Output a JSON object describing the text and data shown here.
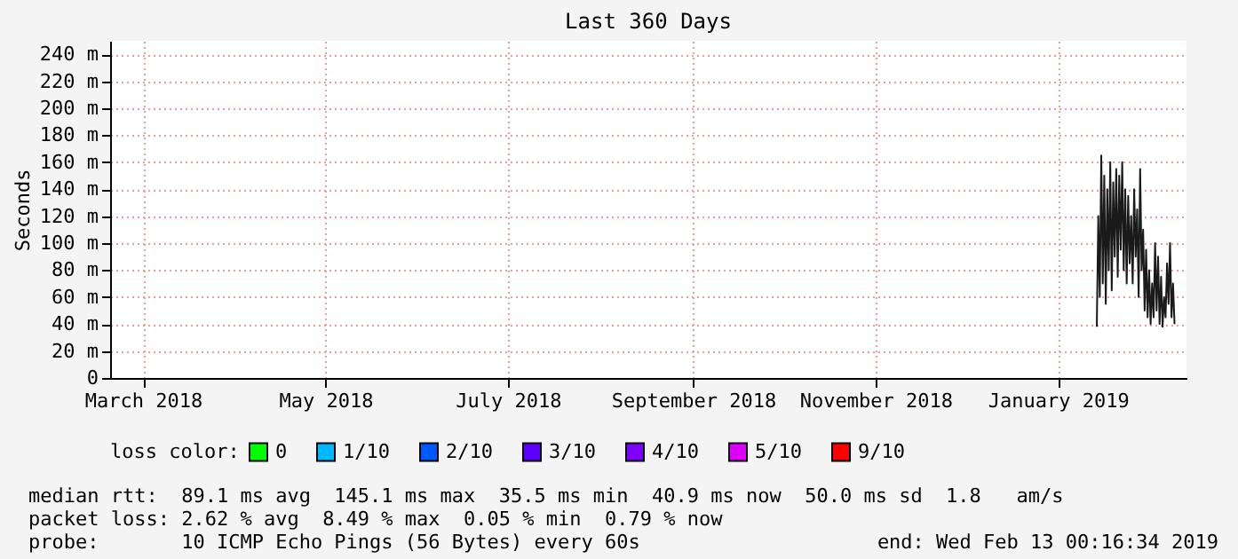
{
  "chart_data": {
    "type": "line",
    "title": "Last 360 Days",
    "ylabel": "Seconds",
    "legend_title": "loss color:",
    "legend": "bottom",
    "grid": true,
    "marker": "none",
    "line_style": "solid",
    "xlim": [
      "2018-02-18",
      "2019-02-13"
    ],
    "xticks": [
      {
        "value": "2018-03-01",
        "label": "March 2018"
      },
      {
        "value": "2018-05-01",
        "label": "May 2018"
      },
      {
        "value": "2018-07-01",
        "label": "July 2018"
      },
      {
        "value": "2018-09-01",
        "label": "September 2018"
      },
      {
        "value": "2018-11-01",
        "label": "November 2018"
      },
      {
        "value": "2019-01-01",
        "label": "January 2019"
      }
    ],
    "ylim": [
      0,
      250
    ],
    "yticks": [
      0,
      {
        "value": 20,
        "label": "20 m"
      },
      {
        "value": 40,
        "label": "40 m"
      },
      {
        "value": 60,
        "label": "60 m"
      },
      {
        "value": 80,
        "label": "80 m"
      },
      {
        "value": 100,
        "label": "100 m"
      },
      {
        "value": 120,
        "label": "120 m"
      },
      {
        "value": 140,
        "label": "140 m"
      },
      {
        "value": 160,
        "label": "160 m"
      },
      {
        "value": 180,
        "label": "180 m"
      },
      {
        "value": 200,
        "label": "200 m"
      },
      {
        "value": 220,
        "label": "220 m"
      },
      {
        "value": 240,
        "label": "240 m"
      }
    ],
    "x": [
      "2019-01-14T00:00",
      "2019-01-14T12:00",
      "2019-01-15T00:00",
      "2019-01-15T12:00",
      "2019-01-16T00:00",
      "2019-01-16T12:00",
      "2019-01-17T00:00",
      "2019-01-17T12:00",
      "2019-01-18T00:00",
      "2019-01-18T12:00",
      "2019-01-19T00:00",
      "2019-01-19T12:00",
      "2019-01-20T00:00",
      "2019-01-20T12:00",
      "2019-01-21T00:00",
      "2019-01-21T12:00",
      "2019-01-22T00:00",
      "2019-01-22T12:00",
      "2019-01-23T00:00",
      "2019-01-23T12:00",
      "2019-01-24T00:00",
      "2019-01-24T12:00",
      "2019-01-25T00:00",
      "2019-01-25T12:00",
      "2019-01-26T00:00",
      "2019-01-26T12:00",
      "2019-01-27T00:00",
      "2019-01-27T12:00",
      "2019-01-28T00:00",
      "2019-01-28T12:00",
      "2019-01-29T00:00",
      "2019-01-29T12:00",
      "2019-01-30T00:00",
      "2019-01-30T12:00",
      "2019-01-31T00:00",
      "2019-01-31T12:00",
      "2019-02-01T00:00",
      "2019-02-01T12:00",
      "2019-02-02T00:00",
      "2019-02-02T12:00",
      "2019-02-03T00:00",
      "2019-02-03T12:00",
      "2019-02-04T00:00",
      "2019-02-04T12:00",
      "2019-02-05T00:00",
      "2019-02-05T12:00",
      "2019-02-06T00:00",
      "2019-02-06T12:00",
      "2019-02-07T00:00",
      "2019-02-07T12:00",
      "2019-02-08T00:00",
      "2019-02-08T12:00",
      "2019-02-09T00:00"
    ],
    "series": [
      {
        "color": "#1a1a1a",
        "values": [
          38,
          120,
          60,
          165,
          70,
          150,
          55,
          140,
          80,
          160,
          65,
          145,
          90,
          155,
          75,
          150,
          95,
          160,
          80,
          140,
          70,
          135,
          85,
          120,
          70,
          140,
          90,
          125,
          60,
          155,
          80,
          110,
          50,
          95,
          45,
          80,
          40,
          70,
          45,
          100,
          50,
          90,
          40,
          75,
          38,
          60,
          45,
          85,
          55,
          100,
          45,
          70,
          40
        ]
      },
      {
        "name": "0",
        "color": "#00ff00",
        "values": [
          null,
          null,
          null,
          null,
          null,
          null,
          null,
          null,
          null,
          null,
          null,
          null,
          null,
          null,
          null,
          null,
          null,
          null,
          null,
          null,
          null,
          null,
          null,
          null,
          null,
          null,
          null,
          null,
          null,
          null,
          null,
          null,
          null,
          null,
          null,
          null,
          null,
          null,
          null,
          null,
          null,
          null,
          null,
          null,
          null,
          null,
          null,
          null,
          null,
          null,
          null,
          null,
          null
        ]
      },
      {
        "name": "1/10",
        "color": "#00b8ff",
        "values": [
          null,
          null,
          null,
          null,
          null,
          null,
          null,
          null,
          null,
          null,
          null,
          null,
          null,
          null,
          null,
          null,
          null,
          null,
          null,
          null,
          null,
          null,
          null,
          null,
          null,
          null,
          null,
          null,
          null,
          null,
          null,
          null,
          null,
          null,
          null,
          null,
          null,
          null,
          null,
          null,
          null,
          null,
          null,
          null,
          null,
          null,
          null,
          null,
          null,
          null,
          null,
          null,
          null
        ]
      },
      {
        "name": "2/10",
        "color": "#0059ff",
        "values": [
          null,
          null,
          null,
          null,
          null,
          null,
          null,
          null,
          null,
          null,
          null,
          null,
          null,
          null,
          null,
          null,
          null,
          null,
          null,
          null,
          null,
          null,
          null,
          null,
          null,
          null,
          null,
          null,
          null,
          null,
          null,
          null,
          null,
          null,
          null,
          null,
          null,
          null,
          null,
          null,
          null,
          null,
          null,
          null,
          null,
          null,
          null,
          null,
          null,
          null,
          null,
          null,
          null
        ]
      },
      {
        "name": "3/10",
        "color": "#5e00ff",
        "values": [
          null,
          null,
          null,
          null,
          null,
          null,
          null,
          null,
          null,
          null,
          null,
          null,
          null,
          null,
          null,
          null,
          null,
          null,
          null,
          null,
          null,
          null,
          null,
          null,
          null,
          null,
          null,
          null,
          null,
          null,
          null,
          null,
          null,
          null,
          null,
          null,
          null,
          null,
          null,
          null,
          null,
          null,
          null,
          null,
          null,
          null,
          null,
          null,
          null,
          null,
          null,
          null,
          null
        ]
      },
      {
        "name": "4/10",
        "color": "#7e00ff",
        "values": [
          null,
          null,
          null,
          null,
          null,
          null,
          null,
          null,
          null,
          null,
          null,
          null,
          null,
          null,
          null,
          null,
          null,
          null,
          null,
          null,
          null,
          null,
          null,
          null,
          null,
          null,
          null,
          null,
          null,
          null,
          null,
          null,
          null,
          null,
          null,
          null,
          null,
          null,
          null,
          null,
          null,
          null,
          null,
          null,
          null,
          null,
          null,
          null,
          null,
          null,
          null,
          null,
          null
        ]
      },
      {
        "name": "5/10",
        "color": "#dd00ff",
        "values": [
          null,
          null,
          null,
          null,
          null,
          null,
          null,
          null,
          null,
          null,
          null,
          null,
          null,
          null,
          null,
          null,
          null,
          null,
          null,
          null,
          null,
          null,
          null,
          null,
          null,
          null,
          null,
          null,
          null,
          null,
          null,
          null,
          null,
          null,
          null,
          null,
          null,
          null,
          null,
          null,
          null,
          null,
          null,
          null,
          null,
          null,
          null,
          null,
          null,
          null,
          null,
          null,
          null
        ]
      },
      {
        "name": "9/10",
        "color": "#ff0000",
        "values": [
          null,
          null,
          null,
          null,
          null,
          null,
          null,
          null,
          null,
          null,
          null,
          null,
          null,
          null,
          null,
          null,
          null,
          null,
          null,
          null,
          null,
          null,
          null,
          null,
          null,
          null,
          null,
          null,
          null,
          null,
          null,
          null,
          null,
          null,
          null,
          null,
          null,
          null,
          null,
          null,
          null,
          null,
          null,
          null,
          null,
          null,
          null,
          null,
          null,
          null,
          null,
          null,
          null
        ]
      }
    ],
    "annotations": [
      "median rtt:  89.1 ms avg  145.1 ms max  35.5 ms min  40.9 ms now  50.0 ms sd  1.8   am/s",
      "packet loss: 2.62 % avg  8.49 % max  0.05 % min  0.79 % now",
      "probe:       10 ICMP Echo Pings (56 Bytes) every 60s",
      "end: Wed Feb 13 00:16:34 2019"
    ]
  }
}
